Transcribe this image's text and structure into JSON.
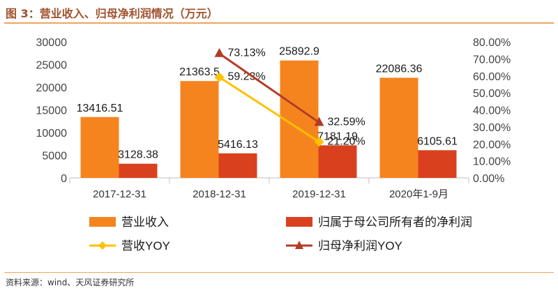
{
  "figure": {
    "title": "图 3：营业收入、归母净利润情况（万元）",
    "source": "资料来源：wind、天风证券研究所"
  },
  "colors": {
    "revenue_bar": "#f5841f",
    "profit_bar": "#d9411e",
    "revenue_yoy_line": "#ffc000",
    "profit_yoy_line": "#b33c25",
    "axis_text": "#444444",
    "title_accent": "#f0a35a"
  },
  "chart_data": {
    "type": "bar",
    "categories": [
      "2017-12-31",
      "2018-12-31",
      "2019-12-31",
      "2020年1-9月"
    ],
    "series": [
      {
        "name": "营业收入",
        "kind": "bar",
        "axis": "left",
        "values": [
          13416.51,
          21363.5,
          25892.9,
          22086.36
        ],
        "labels": [
          "13416.51",
          "21363.5",
          "25892.9",
          "22086.36"
        ]
      },
      {
        "name": "归属于母公司所有者的净利润",
        "kind": "bar",
        "axis": "left",
        "values": [
          3128.38,
          5416.13,
          7181.19,
          6105.61
        ],
        "labels": [
          "3128.38",
          "5416.13",
          "7181.19",
          "6105.61"
        ]
      },
      {
        "name": "营收YOY",
        "kind": "line",
        "axis": "right",
        "marker": "diamond",
        "values": [
          null,
          59.23,
          21.2,
          null
        ],
        "labels": [
          "",
          "59.23%",
          "21.20%",
          ""
        ]
      },
      {
        "name": "归母净利润YOY",
        "kind": "line",
        "axis": "right",
        "marker": "triangle",
        "values": [
          null,
          73.13,
          32.59,
          null
        ],
        "labels": [
          "",
          "73.13%",
          "32.59%",
          ""
        ]
      }
    ],
    "y_left": {
      "min": 0,
      "max": 30000,
      "ticks": [
        "0",
        "5000",
        "10000",
        "15000",
        "20000",
        "25000",
        "30000"
      ]
    },
    "y_right": {
      "min": 0,
      "max": 80,
      "ticks": [
        "0.00%",
        "10.00%",
        "20.00%",
        "30.00%",
        "40.00%",
        "50.00%",
        "60.00%",
        "70.00%",
        "80.00%"
      ]
    },
    "grid": false,
    "legend_position": "bottom"
  }
}
